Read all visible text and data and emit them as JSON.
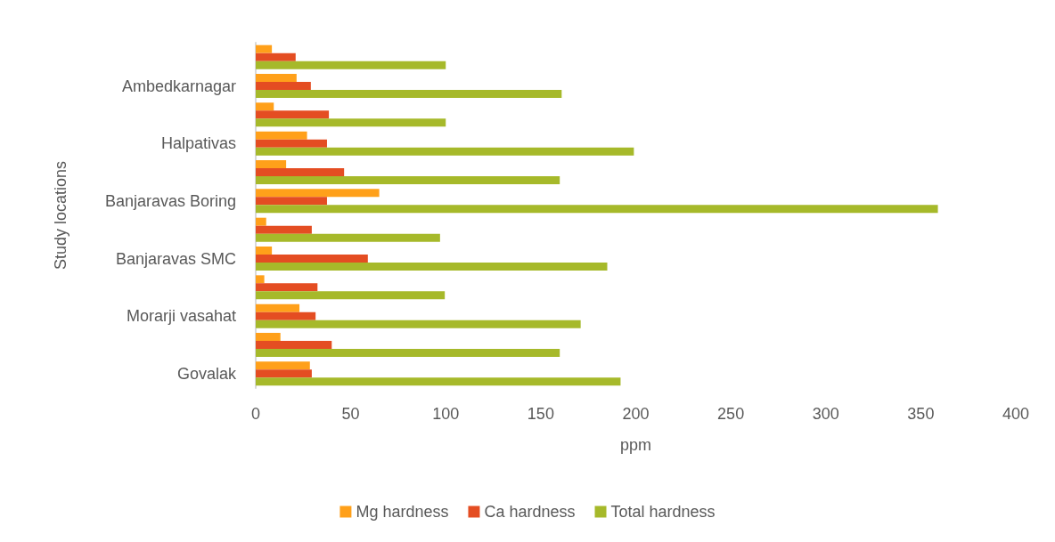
{
  "chart_data": {
    "type": "bar",
    "orientation": "horizontal",
    "xlabel": "ppm",
    "ylabel": "Study locations",
    "categories": [
      null,
      "Ambedkarnagar",
      null,
      "Halpativas",
      null,
      "Banjaravas Boring",
      null,
      "Banjaravas SMC",
      null,
      "Morarji vasahat",
      null,
      "Govalak"
    ],
    "series": [
      {
        "name": "Mg hardness",
        "color": "#ffa01a",
        "values": [
          8.5,
          21.5,
          9.5,
          27,
          16,
          65,
          5.5,
          8.5,
          4.5,
          23,
          13,
          28.5
        ]
      },
      {
        "name": "Ca hardness",
        "color": "#e44d22",
        "values": [
          21,
          29,
          38.5,
          37.5,
          46.5,
          37.5,
          29.5,
          59,
          32.5,
          31.5,
          40,
          29.5
        ]
      },
      {
        "name": "Total hardness",
        "color": "#a6b92a",
        "values": [
          100,
          161,
          100,
          199,
          160,
          359,
          97,
          185,
          99.5,
          171,
          160,
          192
        ]
      }
    ],
    "xlim": [
      0,
      400
    ],
    "xticks": [
      0,
      50,
      100,
      150,
      200,
      250,
      300,
      350,
      400
    ],
    "grid": false,
    "legend": "bottom"
  }
}
